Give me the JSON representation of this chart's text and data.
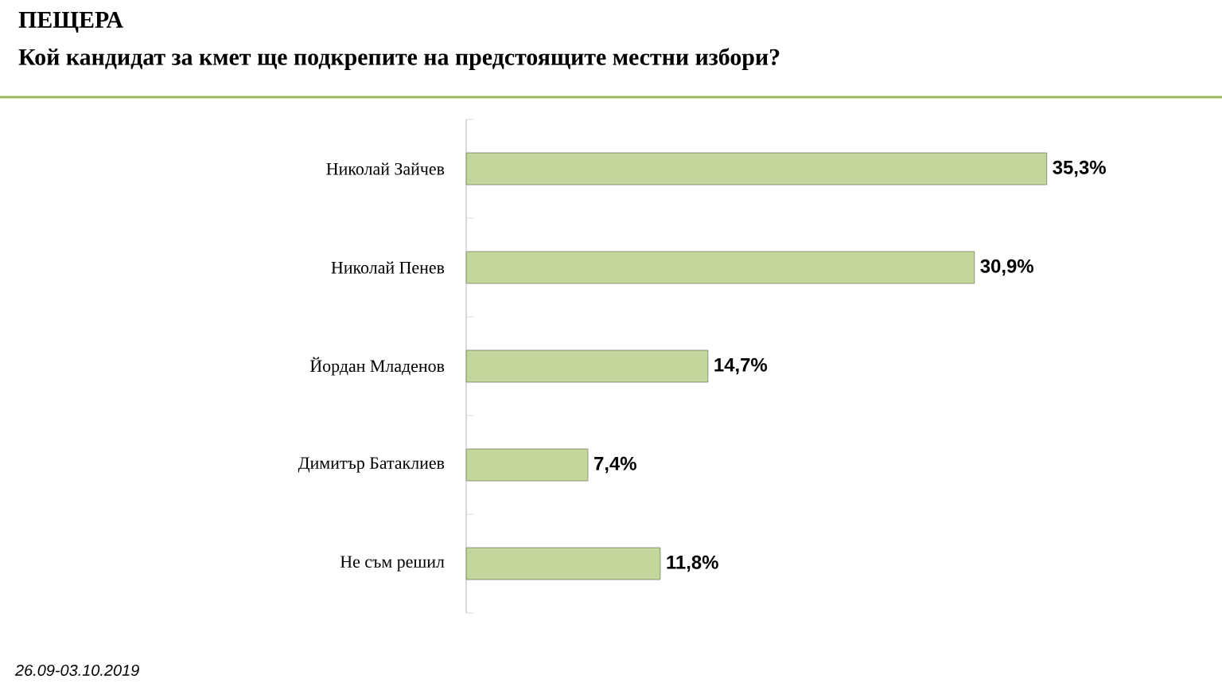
{
  "chart_data": {
    "type": "bar",
    "orientation": "horizontal",
    "title": "ПЕЩЕРА",
    "subtitle": "Кой кандидат за кмет ще подкрепите на предстоящите местни избори?",
    "categories": [
      "Николай Зайчев",
      "Николай Пенев",
      "Йордан Младенов",
      "Димитър Батаклиев",
      "Не съм решил"
    ],
    "values": [
      35.3,
      30.9,
      14.7,
      7.4,
      11.8
    ],
    "value_labels": [
      "35,3%",
      "30,9%",
      "14,7%",
      "7,4%",
      "11,8%"
    ],
    "color": "#c3d69b",
    "annotations": [
      "26.09-03.10.2019"
    ]
  }
}
